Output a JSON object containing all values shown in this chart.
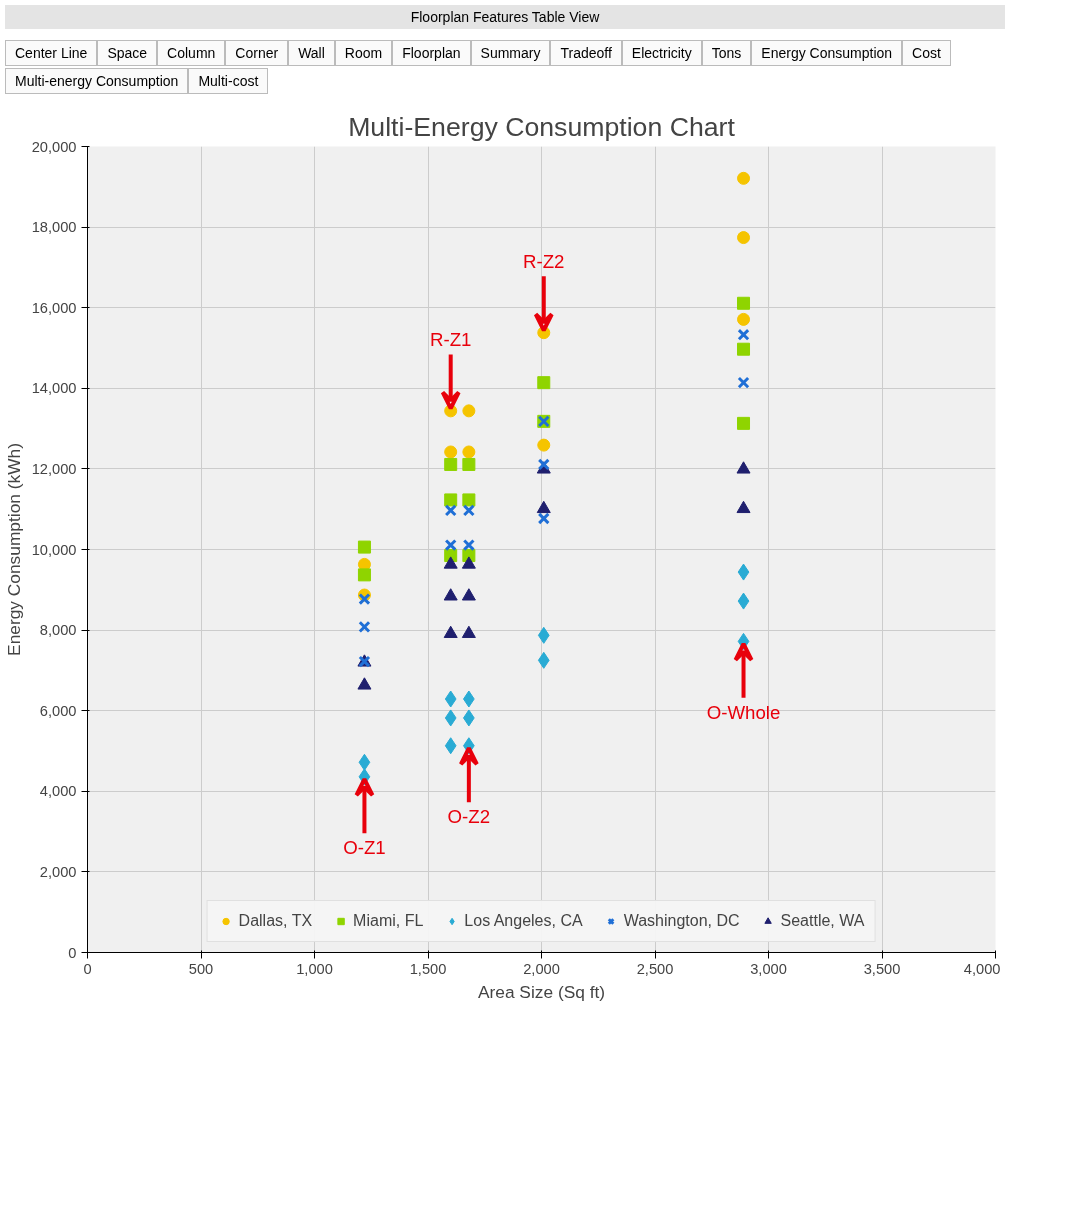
{
  "chart_data": {
    "type": "scatter",
    "title": "Multi-Energy Consumption Chart",
    "xlabel": "Area Size (Sq ft)",
    "ylabel": "Energy Consumption (kWh)",
    "xlim": [
      0,
      4000
    ],
    "xticks": [
      {
        "value": 0,
        "label": "0"
      },
      {
        "value": 500,
        "label": "500"
      },
      {
        "value": 1000,
        "label": "1,000"
      },
      {
        "value": 1500,
        "label": "1,500"
      },
      {
        "value": 2000,
        "label": "2,000"
      },
      {
        "value": 2500,
        "label": "2,500"
      },
      {
        "value": 3000,
        "label": "3,000"
      },
      {
        "value": 3500,
        "label": "3,500"
      },
      {
        "value": 4000,
        "label": "4,000"
      }
    ],
    "ylim": [
      0,
      20000
    ],
    "yticks": [
      {
        "value": 0,
        "label": "0"
      },
      {
        "value": 2000,
        "label": "2,000"
      },
      {
        "value": 4000,
        "label": "4,000"
      },
      {
        "value": 6000,
        "label": "6,000"
      },
      {
        "value": 8000,
        "label": "8,000"
      },
      {
        "value": 10000,
        "label": "10,000"
      },
      {
        "value": 12000,
        "label": "12,000"
      },
      {
        "value": 14000,
        "label": "14,000"
      },
      {
        "value": 16000,
        "label": "16,000"
      },
      {
        "value": 18000,
        "label": "18,000"
      },
      {
        "value": 20000,
        "label": "20,000"
      }
    ],
    "grid": true,
    "legend": "bottom",
    "series": [
      {
        "name": "Dallas, TX",
        "color": "#f5c400",
        "marker": "circle",
        "x": [
          1220,
          1220,
          1600,
          1680,
          1600,
          1680,
          2010,
          2010,
          2890,
          2890,
          2890
        ],
        "values": [
          9630,
          8870,
          13440,
          13440,
          12420,
          12420,
          15380,
          12590,
          19210,
          17740,
          15710
        ]
      },
      {
        "name": "Miami, FL",
        "color": "#8fd400",
        "marker": "square",
        "x": [
          1220,
          1220,
          1600,
          1680,
          1600,
          1680,
          1600,
          1680,
          2010,
          2010,
          2890,
          2890,
          2890
        ],
        "values": [
          10060,
          9370,
          12110,
          12110,
          11230,
          11230,
          9850,
          9850,
          14140,
          13180,
          16110,
          14970,
          13130
        ]
      },
      {
        "name": "Los Angeles, CA",
        "color": "#29abd4",
        "marker": "diamond",
        "x": [
          1220,
          1220,
          1600,
          1680,
          1600,
          1680,
          1600,
          1680,
          2010,
          2010,
          2890,
          2890,
          2890
        ],
        "values": [
          4720,
          4360,
          6290,
          6290,
          5820,
          5820,
          5130,
          5130,
          7870,
          7250,
          9440,
          8720,
          7720
        ]
      },
      {
        "name": "Washington, DC",
        "color": "#1f6fd6",
        "marker": "cross",
        "x": [
          1220,
          1220,
          1220,
          1600,
          1680,
          1600,
          1680,
          2010,
          2010,
          2010,
          2890,
          2890
        ],
        "values": [
          8770,
          8080,
          7220,
          10970,
          10970,
          10110,
          10110,
          13180,
          12110,
          10770,
          15330,
          14140
        ]
      },
      {
        "name": "Seattle, WA",
        "color": "#1f1f6e",
        "marker": "triangle",
        "x": [
          1220,
          1220,
          1600,
          1680,
          1600,
          1680,
          1600,
          1680,
          2010,
          2010,
          2890,
          2890
        ],
        "values": [
          7200,
          6630,
          9630,
          9630,
          8840,
          8840,
          7910,
          7910,
          11990,
          11010,
          11990,
          11010
        ]
      }
    ],
    "annotations": [
      "Floorplan Features Table View",
      "Center Line",
      "Space",
      "Column",
      "Corner",
      "Wall",
      "Room",
      "Floorplan",
      "Summary",
      "Tradeoff",
      "Electricity",
      "Tons",
      "Energy Consumption",
      "Cost",
      "Multi-energy Consumption",
      "Multi-cost",
      {
        "text": "R-Z1",
        "x": 1600,
        "y": 13440
      },
      {
        "text": "R-Z2",
        "x": 2010,
        "y": 15380
      },
      {
        "text": "O-Z1",
        "x": 1220,
        "y": 4360
      },
      {
        "text": "O-Z2",
        "x": 1680,
        "y": 5130
      },
      {
        "text": "O-Whole",
        "x": 2890,
        "y": 7720
      }
    ]
  }
}
